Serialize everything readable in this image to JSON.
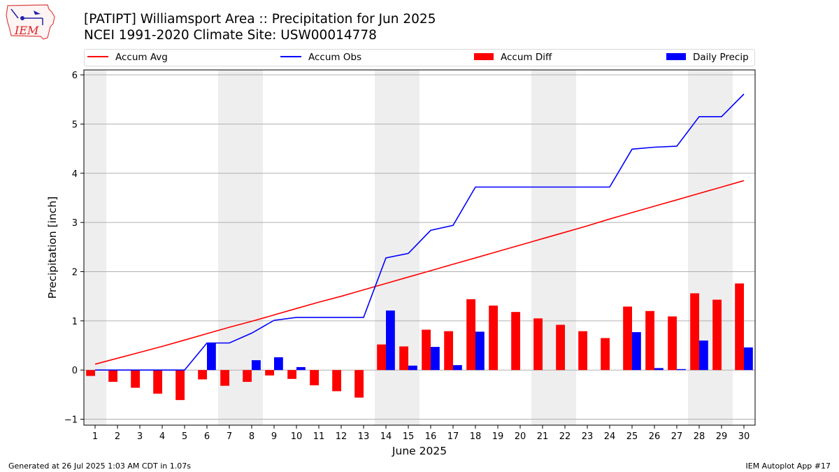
{
  "header": {
    "title_line1": "[PATIPT] Williamsport Area :: Precipitation for Jun 2025",
    "title_line2": "NCEI 1991-2020 Climate Site: USW00014778",
    "logo_text": "IEM"
  },
  "legend": {
    "accum_avg": "Accum Avg",
    "accum_obs": "Accum Obs",
    "accum_diff": "Accum Diff",
    "daily_precip": "Daily Precip"
  },
  "colors": {
    "accum_avg": "#ff0000",
    "accum_obs": "#0000ff",
    "accum_diff": "#ff0000",
    "daily_precip": "#0000ff",
    "weekend_shade": "#eeeeee",
    "grid": "#b0b0b0"
  },
  "footer": {
    "generated": "Generated at 26 Jul 2025 1:03 AM CDT in 1.07s",
    "app": "IEM Autoplot App #17"
  },
  "chart_data": {
    "type": "bar",
    "xlabel": "June 2025",
    "ylabel": "Precipitation [inch]",
    "ylim": [
      -1.12,
      6.1
    ],
    "xlim": [
      0.5,
      30.5
    ],
    "yticks": [
      -1,
      0,
      1,
      2,
      3,
      4,
      5,
      6
    ],
    "categories": [
      "1",
      "2",
      "3",
      "4",
      "5",
      "6",
      "7",
      "8",
      "9",
      "10",
      "11",
      "12",
      "13",
      "14",
      "15",
      "16",
      "17",
      "18",
      "19",
      "20",
      "21",
      "22",
      "23",
      "24",
      "25",
      "26",
      "27",
      "28",
      "29",
      "30"
    ],
    "grid": "horizontal",
    "legend_position": "top",
    "weekend_shading": [
      [
        0.5,
        1.5
      ],
      [
        6.5,
        8.5
      ],
      [
        13.5,
        15.5
      ],
      [
        20.5,
        22.5
      ],
      [
        27.5,
        29.5
      ]
    ],
    "series": [
      {
        "name": "Accum Avg",
        "kind": "line",
        "values": [
          0.12,
          0.24,
          0.36,
          0.48,
          0.61,
          0.74,
          0.87,
          0.99,
          1.12,
          1.25,
          1.38,
          1.5,
          1.63,
          1.76,
          1.89,
          2.02,
          2.15,
          2.28,
          2.41,
          2.54,
          2.67,
          2.8,
          2.93,
          3.07,
          3.2,
          3.33,
          3.46,
          3.59,
          3.72,
          3.85
        ]
      },
      {
        "name": "Accum Obs",
        "kind": "line",
        "values": [
          0.0,
          0.0,
          0.0,
          0.0,
          0.0,
          0.55,
          0.55,
          0.75,
          1.01,
          1.07,
          1.07,
          1.07,
          1.07,
          2.28,
          2.37,
          2.84,
          2.94,
          3.72,
          3.72,
          3.72,
          3.72,
          3.72,
          3.72,
          3.72,
          4.49,
          4.53,
          4.55,
          5.15,
          5.15,
          5.61
        ]
      },
      {
        "name": "Accum Diff",
        "kind": "bar",
        "values": [
          -0.12,
          -0.24,
          -0.36,
          -0.48,
          -0.61,
          -0.19,
          -0.32,
          -0.24,
          -0.11,
          -0.18,
          -0.31,
          -0.43,
          -0.56,
          0.52,
          0.48,
          0.82,
          0.79,
          1.44,
          1.31,
          1.18,
          1.05,
          0.92,
          0.79,
          0.65,
          1.29,
          1.2,
          1.09,
          1.56,
          1.43,
          1.76
        ]
      },
      {
        "name": "Daily Precip",
        "kind": "bar",
        "values": [
          0,
          0,
          0,
          0,
          0,
          0.55,
          0,
          0.2,
          0.26,
          0.06,
          0,
          0,
          0,
          1.21,
          0.09,
          0.47,
          0.1,
          0.78,
          0,
          0,
          0,
          0,
          0,
          0,
          0.77,
          0.04,
          0.02,
          0.6,
          0,
          0.46
        ]
      }
    ]
  }
}
